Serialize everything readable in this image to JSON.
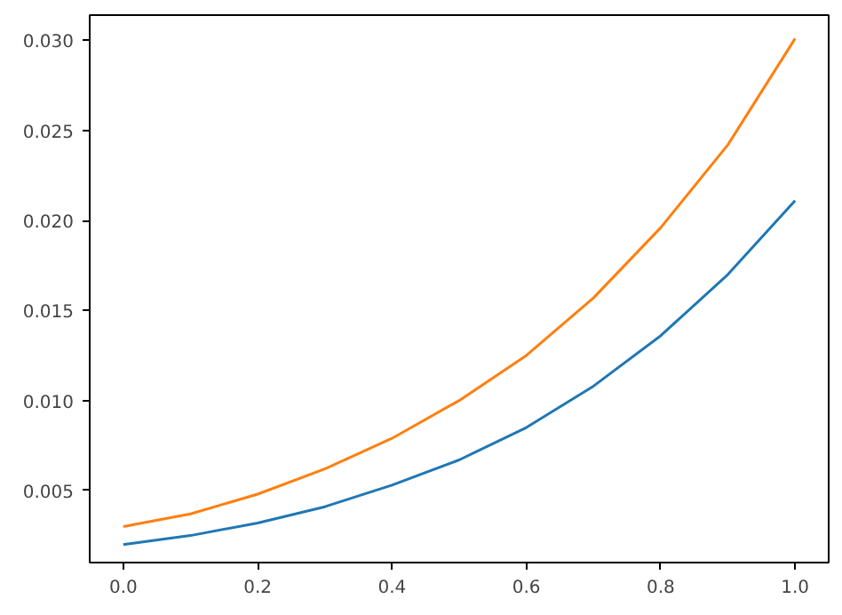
{
  "chart_data": {
    "type": "line",
    "x": [
      0,
      0.1,
      0.2,
      0.3,
      0.4,
      0.5,
      0.6,
      0.7,
      0.8,
      0.9,
      1.0
    ],
    "series": [
      {
        "color": "#1f77b4",
        "values": [
          0.002,
          0.0025,
          0.0032,
          0.0041,
          0.0053,
          0.0067,
          0.0085,
          0.0108,
          0.0136,
          0.017,
          0.0211
        ]
      },
      {
        "color": "#ff7f0e",
        "values": [
          0.003,
          0.0037,
          0.0048,
          0.0062,
          0.0079,
          0.01,
          0.0125,
          0.0157,
          0.0196,
          0.0242,
          0.0301
        ]
      }
    ],
    "xlim": [
      -0.05,
      1.05
    ],
    "ylim": [
      0.001,
      0.0314
    ],
    "xticks": [
      {
        "value": 0,
        "label": "0.0"
      },
      {
        "value": 0.2,
        "label": "0.2"
      },
      {
        "value": 0.4,
        "label": "0.4"
      },
      {
        "value": 0.6,
        "label": "0.6"
      },
      {
        "value": 0.8,
        "label": "0.8"
      },
      {
        "value": 1.0,
        "label": "1.0"
      }
    ],
    "yticks": [
      {
        "value": 0.005,
        "label": "0.005"
      },
      {
        "value": 0.01,
        "label": "0.010"
      },
      {
        "value": 0.015,
        "label": "0.015"
      },
      {
        "value": 0.02,
        "label": "0.020"
      },
      {
        "value": 0.025,
        "label": "0.025"
      },
      {
        "value": 0.03,
        "label": "0.030"
      }
    ],
    "grid": false
  }
}
